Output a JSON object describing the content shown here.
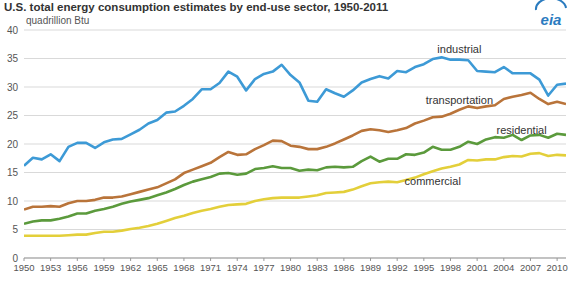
{
  "chart_data": {
    "type": "line",
    "title": "U.S. total energy consumption estimates by end-use sector, 1950-2011",
    "subtitle": "quadrillion Btu",
    "x": [
      1950,
      1951,
      1952,
      1953,
      1954,
      1955,
      1956,
      1957,
      1958,
      1959,
      1960,
      1961,
      1962,
      1963,
      1964,
      1965,
      1966,
      1967,
      1968,
      1969,
      1970,
      1971,
      1972,
      1973,
      1974,
      1975,
      1976,
      1977,
      1978,
      1979,
      1980,
      1981,
      1982,
      1983,
      1984,
      1985,
      1986,
      1987,
      1988,
      1989,
      1990,
      1991,
      1992,
      1993,
      1994,
      1995,
      1996,
      1997,
      1998,
      1999,
      2000,
      2001,
      2002,
      2003,
      2004,
      2005,
      2006,
      2007,
      2008,
      2009,
      2010,
      2011
    ],
    "series": [
      {
        "name": "industrial",
        "color": "#3d9ad6",
        "values": [
          16.2,
          17.6,
          17.3,
          18.2,
          17.0,
          19.5,
          20.2,
          20.2,
          19.3,
          20.3,
          20.8,
          20.9,
          21.7,
          22.5,
          23.6,
          24.2,
          25.5,
          25.7,
          26.7,
          27.9,
          29.6,
          29.6,
          30.7,
          32.7,
          31.8,
          29.4,
          31.4,
          32.3,
          32.7,
          33.9,
          32.1,
          30.8,
          27.6,
          27.4,
          29.6,
          28.9,
          28.3,
          29.4,
          30.8,
          31.4,
          31.9,
          31.5,
          32.8,
          32.6,
          33.5,
          34.0,
          34.9,
          35.2,
          34.8,
          34.8,
          34.7,
          32.8,
          32.7,
          32.6,
          33.5,
          32.4,
          32.4,
          32.4,
          31.3,
          28.5,
          30.4,
          30.6
        ]
      },
      {
        "name": "transportation",
        "color": "#b9743a",
        "values": [
          8.5,
          9.0,
          9.0,
          9.1,
          9.0,
          9.6,
          10.0,
          10.0,
          10.2,
          10.6,
          10.6,
          10.8,
          11.2,
          11.6,
          12.0,
          12.4,
          13.1,
          13.8,
          14.9,
          15.5,
          16.1,
          16.7,
          17.7,
          18.6,
          18.1,
          18.2,
          19.1,
          19.8,
          20.6,
          20.5,
          19.7,
          19.5,
          19.1,
          19.1,
          19.5,
          20.1,
          20.8,
          21.5,
          22.3,
          22.6,
          22.4,
          22.1,
          22.4,
          22.8,
          23.6,
          24.1,
          24.7,
          24.8,
          25.3,
          26.0,
          26.6,
          26.3,
          26.6,
          26.8,
          27.9,
          28.3,
          28.6,
          29.0,
          27.9,
          27.0,
          27.4,
          27.0
        ]
      },
      {
        "name": "residential",
        "color": "#5b9a3c",
        "values": [
          6.0,
          6.4,
          6.6,
          6.6,
          6.9,
          7.3,
          7.8,
          7.8,
          8.3,
          8.6,
          9.0,
          9.5,
          9.9,
          10.2,
          10.5,
          11.0,
          11.5,
          12.1,
          12.8,
          13.4,
          13.8,
          14.2,
          14.8,
          14.9,
          14.6,
          14.8,
          15.6,
          15.8,
          16.1,
          15.8,
          15.8,
          15.3,
          15.5,
          15.4,
          15.9,
          16.0,
          15.9,
          16.0,
          17.0,
          17.8,
          16.9,
          17.4,
          17.4,
          18.2,
          18.1,
          18.5,
          19.5,
          19.0,
          19.0,
          19.5,
          20.4,
          20.0,
          20.8,
          21.2,
          21.1,
          21.6,
          20.7,
          21.5,
          21.6,
          21.1,
          21.8,
          21.6
        ]
      },
      {
        "name": "commercial",
        "color": "#e3cf3a",
        "values": [
          3.9,
          3.9,
          3.9,
          3.9,
          3.9,
          4.0,
          4.1,
          4.1,
          4.4,
          4.6,
          4.6,
          4.8,
          5.1,
          5.3,
          5.6,
          6.0,
          6.5,
          7.0,
          7.4,
          7.9,
          8.3,
          8.6,
          9.0,
          9.3,
          9.4,
          9.5,
          10.0,
          10.3,
          10.5,
          10.6,
          10.6,
          10.6,
          10.8,
          11.0,
          11.4,
          11.5,
          11.6,
          12.0,
          12.6,
          13.1,
          13.3,
          13.4,
          13.3,
          13.7,
          14.1,
          14.7,
          15.2,
          15.7,
          16.0,
          16.4,
          17.2,
          17.1,
          17.3,
          17.3,
          17.7,
          17.9,
          17.8,
          18.3,
          18.4,
          17.9,
          18.1,
          18.0
        ]
      }
    ],
    "xlim": [
      1950,
      2011
    ],
    "xticks": [
      1950,
      1953,
      1956,
      1959,
      1962,
      1965,
      1968,
      1971,
      1974,
      1977,
      1980,
      1983,
      1986,
      1989,
      1992,
      1995,
      1998,
      2001,
      2004,
      2007,
      2010
    ],
    "ylim": [
      0,
      40
    ],
    "yticks": [
      0,
      5,
      10,
      15,
      20,
      25,
      30,
      35,
      40
    ],
    "grid": true
  },
  "logo": "eia"
}
